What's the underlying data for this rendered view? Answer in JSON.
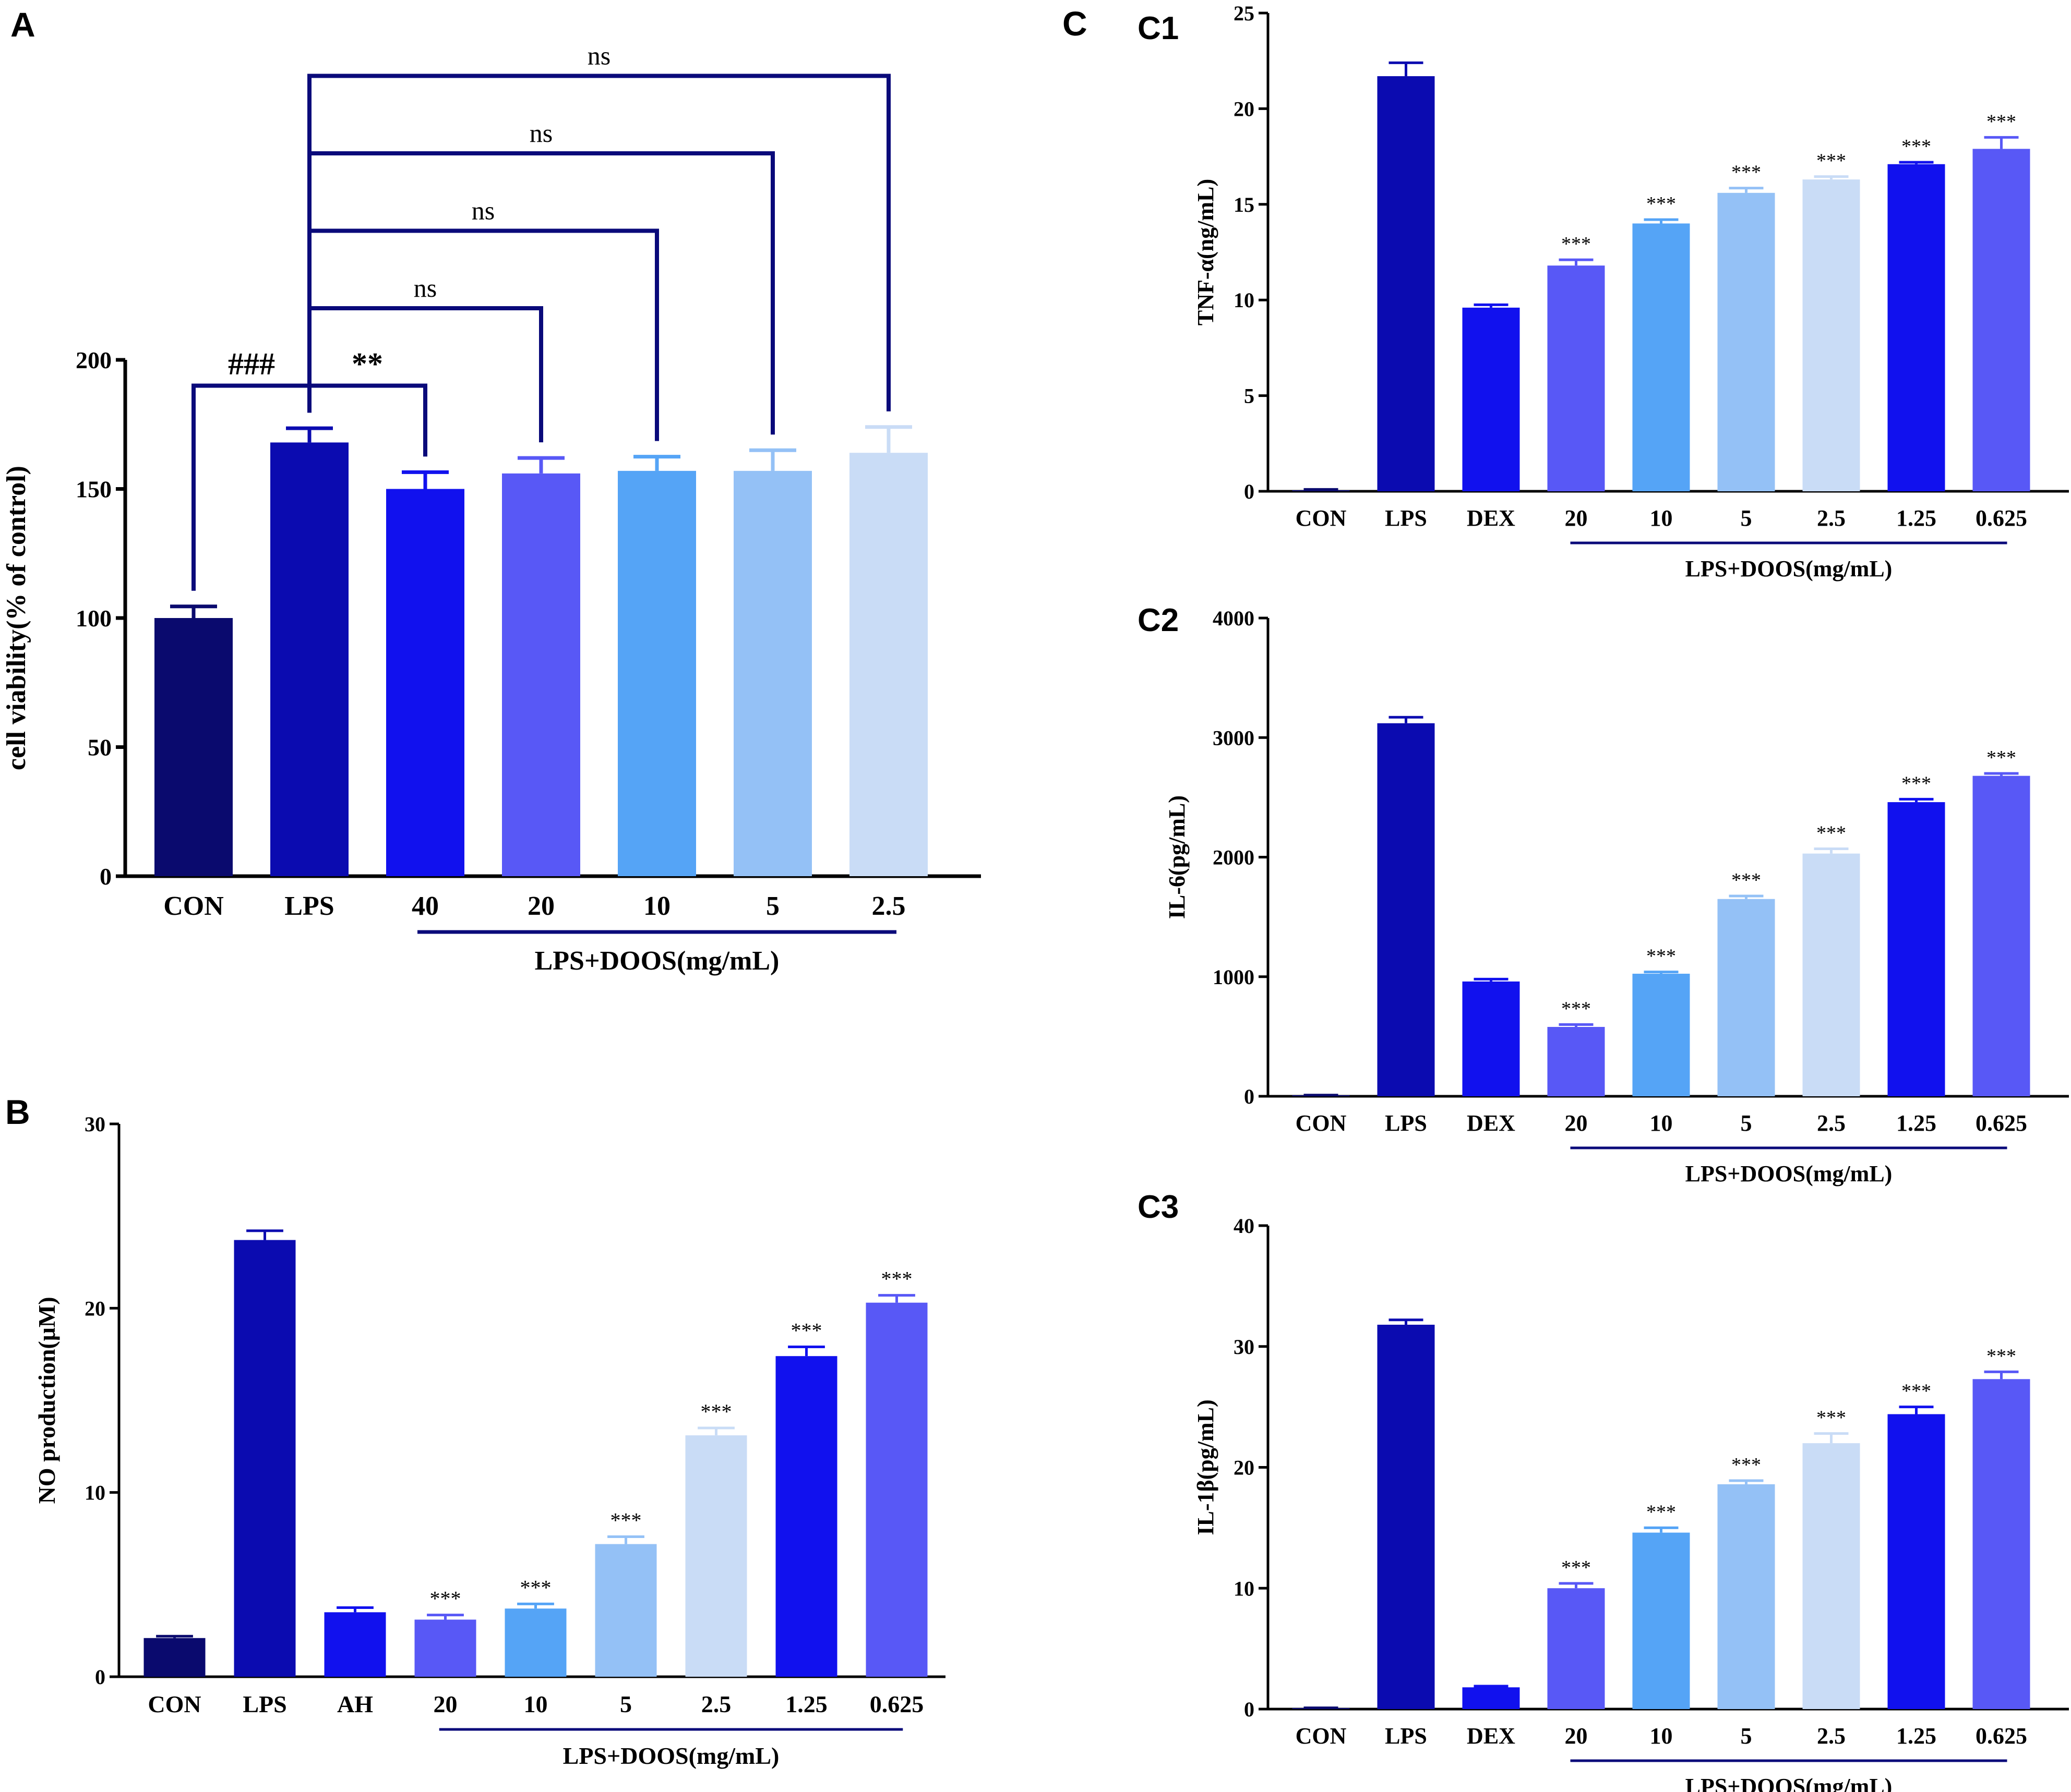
{
  "colors": {
    "CON": "#0a0a6e",
    "LPS": "#0b0bb0",
    "c_blue": "#1111ee",
    "c_violet": "#5858f6",
    "c_mid": "#55a4f6",
    "c_light": "#94c1f6",
    "c_pale": "#c9dcf6",
    "axis": "#000000",
    "bracket": "#0a0a7a",
    "underline": "#0a0a7a"
  },
  "chart_data": [
    {
      "id": "A",
      "panel_label": "A",
      "type": "bar",
      "title": "",
      "xlabel": "",
      "ylabel": "cell viability(% of control)",
      "ylim": [
        0,
        200
      ],
      "yticks": [
        0,
        50,
        100,
        150,
        200
      ],
      "categories": [
        "CON",
        "LPS",
        "40",
        "20",
        "10",
        "5",
        "2.5"
      ],
      "values": [
        100,
        168,
        150,
        156,
        157,
        157,
        164
      ],
      "errors": [
        4.5,
        5.5,
        6.5,
        6.0,
        5.5,
        8.0,
        10.0
      ],
      "bar_colors": [
        "CON",
        "LPS",
        "c_blue",
        "c_violet",
        "c_mid",
        "c_light",
        "c_pale"
      ],
      "group": {
        "label": "LPS+DOOS(mg/mL)",
        "from": 2,
        "to": 6
      },
      "bar_annotations": [
        "",
        "",
        "",
        "",
        "",
        "",
        ""
      ],
      "brackets": [
        {
          "from": 0,
          "to": 1,
          "label": "###",
          "y": 190
        },
        {
          "from": 1,
          "to": 2,
          "label": "**",
          "y": 190
        },
        {
          "from": 1,
          "to": 3,
          "label": "ns",
          "y": 220
        },
        {
          "from": 1,
          "to": 4,
          "label": "ns",
          "y": 250
        },
        {
          "from": 1,
          "to": 5,
          "label": "ns",
          "y": 280
        },
        {
          "from": 1,
          "to": 6,
          "label": "ns",
          "y": 310
        }
      ]
    },
    {
      "id": "B",
      "panel_label": "B",
      "type": "bar",
      "title": "",
      "xlabel": "",
      "ylabel": "NO production(μM)",
      "ylim": [
        0,
        30
      ],
      "yticks": [
        0,
        10,
        20,
        30
      ],
      "categories": [
        "CON",
        "LPS",
        "AH",
        "20",
        "10",
        "5",
        "2.5",
        "1.25",
        "0.625"
      ],
      "values": [
        2.1,
        23.7,
        3.5,
        3.1,
        3.7,
        7.2,
        13.1,
        17.4,
        20.3
      ],
      "errors": [
        0.1,
        0.5,
        0.25,
        0.25,
        0.25,
        0.4,
        0.4,
        0.5,
        0.4
      ],
      "bar_colors": [
        "CON",
        "LPS",
        "c_blue",
        "c_violet",
        "c_mid",
        "c_light",
        "c_pale",
        "c_blue",
        "c_violet"
      ],
      "group": {
        "label": "LPS+DOOS(mg/mL)",
        "from": 3,
        "to": 8
      },
      "bar_annotations": [
        "",
        "",
        "",
        "***",
        "***",
        "***",
        "***",
        "***",
        "***"
      ],
      "brackets": []
    },
    {
      "id": "C1",
      "panel_label": "C1",
      "type": "bar",
      "title": "",
      "xlabel": "",
      "ylabel": "TNF-α(ng/mL)",
      "ylim": [
        0,
        25
      ],
      "yticks": [
        0,
        5,
        10,
        15,
        20,
        25
      ],
      "categories": [
        "CON",
        "LPS",
        "DEX",
        "20",
        "10",
        "5",
        "2.5",
        "1.25",
        "0.625"
      ],
      "values": [
        0.05,
        21.7,
        9.6,
        11.8,
        14.0,
        15.6,
        16.3,
        17.1,
        17.9
      ],
      "errors": [
        0.05,
        0.7,
        0.15,
        0.3,
        0.2,
        0.25,
        0.15,
        0.1,
        0.6
      ],
      "bar_colors": [
        "CON",
        "LPS",
        "c_blue",
        "c_violet",
        "c_mid",
        "c_light",
        "c_pale",
        "c_blue",
        "c_violet"
      ],
      "group": {
        "label": "LPS+DOOS(mg/mL)",
        "from": 3,
        "to": 8
      },
      "bar_annotations": [
        "",
        "",
        "",
        "***",
        "***",
        "***",
        "***",
        "***",
        "***"
      ],
      "brackets": []
    },
    {
      "id": "C2",
      "panel_label": "C2",
      "type": "bar",
      "title": "",
      "xlabel": "",
      "ylabel": "IL-6(pg/mL)",
      "ylim": [
        0,
        4000
      ],
      "yticks": [
        0,
        1000,
        2000,
        3000,
        4000
      ],
      "categories": [
        "CON",
        "LPS",
        "DEX",
        "20",
        "10",
        "5",
        "2.5",
        "1.25",
        "0.625"
      ],
      "values": [
        5,
        3120,
        960,
        580,
        1025,
        1650,
        2030,
        2460,
        2680
      ],
      "errors": [
        5,
        50,
        20,
        20,
        15,
        25,
        40,
        25,
        20
      ],
      "bar_colors": [
        "CON",
        "LPS",
        "c_blue",
        "c_violet",
        "c_mid",
        "c_light",
        "c_pale",
        "c_blue",
        "c_violet"
      ],
      "group": {
        "label": "LPS+DOOS(mg/mL)",
        "from": 3,
        "to": 8
      },
      "bar_annotations": [
        "",
        "",
        "",
        "***",
        "***",
        "***",
        "***",
        "***",
        "***"
      ],
      "brackets": []
    },
    {
      "id": "C3",
      "panel_label": "C3",
      "type": "bar",
      "title": "",
      "xlabel": "",
      "ylabel": "IL-1β(pg/mL)",
      "ylim": [
        0,
        40
      ],
      "yticks": [
        0,
        10,
        20,
        30,
        40
      ],
      "categories": [
        "CON",
        "LPS",
        "DEX",
        "20",
        "10",
        "5",
        "2.5",
        "1.25",
        "0.625"
      ],
      "values": [
        0.05,
        31.8,
        1.8,
        10.0,
        14.6,
        18.6,
        22.0,
        24.4,
        27.3
      ],
      "errors": [
        0.05,
        0.4,
        0.1,
        0.4,
        0.4,
        0.3,
        0.8,
        0.6,
        0.6
      ],
      "bar_colors": [
        "CON",
        "LPS",
        "c_blue",
        "c_violet",
        "c_mid",
        "c_light",
        "c_pale",
        "c_blue",
        "c_violet"
      ],
      "group": {
        "label": "LPS+DOOS(mg/mL)",
        "from": 3,
        "to": 8
      },
      "bar_annotations": [
        "",
        "",
        "",
        "***",
        "***",
        "***",
        "***",
        "***",
        "***"
      ],
      "brackets": []
    }
  ],
  "panel_C_label": "C"
}
